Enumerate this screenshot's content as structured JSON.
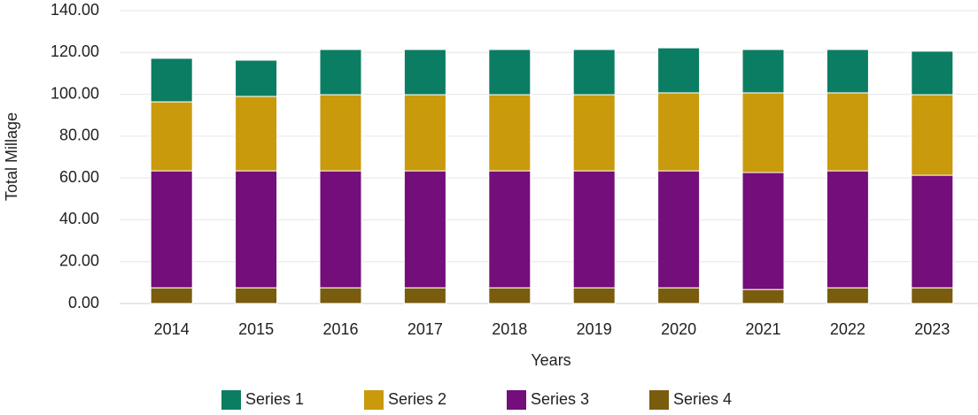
{
  "chart_data": {
    "type": "stacked_bar",
    "x_label": "Years",
    "y_label": "Total Millage",
    "categories": [
      "2014",
      "2015",
      "2016",
      "2017",
      "2018",
      "2019",
      "2020",
      "2021",
      "2022",
      "2023"
    ],
    "series": [
      {
        "name": "Series 4",
        "color": "#7a5c0e",
        "values": [
          7.5,
          7.5,
          7.5,
          7.5,
          7.5,
          7.5,
          7.5,
          6.7,
          7.5,
          7.5
        ]
      },
      {
        "name": "Series 3",
        "color": "#730e7a",
        "values": [
          55.9,
          55.9,
          55.9,
          55.9,
          55.9,
          55.9,
          55.9,
          55.9,
          55.9,
          53.8
        ]
      },
      {
        "name": "Series 2",
        "color": "#c89a0c",
        "values": [
          33.0,
          35.6,
          36.4,
          36.4,
          36.4,
          36.4,
          37.3,
          38.1,
          37.3,
          38.5
        ]
      },
      {
        "name": "Series 1",
        "color": "#0b7d62",
        "values": [
          20.8,
          17.3,
          21.6,
          21.6,
          21.6,
          21.6,
          21.5,
          20.7,
          20.7,
          20.8
        ]
      }
    ],
    "legend_order": [
      3,
      2,
      1,
      0
    ],
    "ylim": [
      0,
      140
    ],
    "yticks": [
      {
        "value": 0,
        "label": "0.00"
      },
      {
        "value": 20,
        "label": "20.00"
      },
      {
        "value": 40,
        "label": "40.00"
      },
      {
        "value": 60,
        "label": "60.00"
      },
      {
        "value": 80,
        "label": "80.00"
      },
      {
        "value": 100,
        "label": "100.00"
      },
      {
        "value": 120,
        "label": "120.00"
      },
      {
        "value": 140,
        "label": "140.00"
      }
    ],
    "grid": true
  }
}
